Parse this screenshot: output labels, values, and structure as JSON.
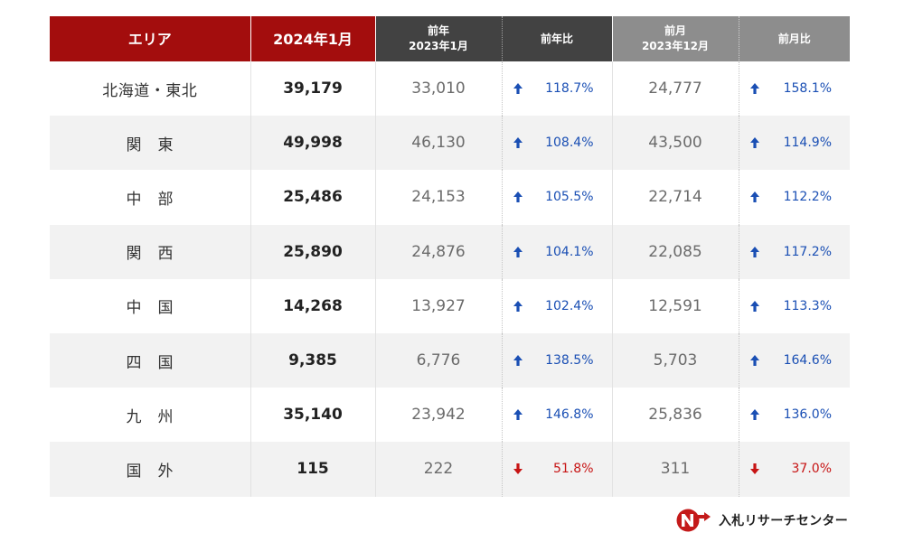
{
  "header": {
    "area": "エリア",
    "current": "2024年1月",
    "prev_year": {
      "line1": "前年",
      "line2": "2023年1月"
    },
    "yoy": "前年比",
    "prev_month": {
      "line1": "前月",
      "line2": "2023年12月"
    },
    "mom": "前月比"
  },
  "rows": [
    {
      "area": "北海道・東北",
      "current": "39,179",
      "prev_year": "33,010",
      "yoy": "118.7%",
      "yoy_dir": "up",
      "prev_month": "24,777",
      "mom": "158.1%",
      "mom_dir": "up"
    },
    {
      "area": "関　東",
      "current": "49,998",
      "prev_year": "46,130",
      "yoy": "108.4%",
      "yoy_dir": "up",
      "prev_month": "43,500",
      "mom": "114.9%",
      "mom_dir": "up"
    },
    {
      "area": "中　部",
      "current": "25,486",
      "prev_year": "24,153",
      "yoy": "105.5%",
      "yoy_dir": "up",
      "prev_month": "22,714",
      "mom": "112.2%",
      "mom_dir": "up"
    },
    {
      "area": "関　西",
      "current": "25,890",
      "prev_year": "24,876",
      "yoy": "104.1%",
      "yoy_dir": "up",
      "prev_month": "22,085",
      "mom": "117.2%",
      "mom_dir": "up"
    },
    {
      "area": "中　国",
      "current": "14,268",
      "prev_year": "13,927",
      "yoy": "102.4%",
      "yoy_dir": "up",
      "prev_month": "12,591",
      "mom": "113.3%",
      "mom_dir": "up"
    },
    {
      "area": "四　国",
      "current": "9,385",
      "prev_year": "6,776",
      "yoy": "138.5%",
      "yoy_dir": "up",
      "prev_month": "5,703",
      "mom": "164.6%",
      "mom_dir": "up"
    },
    {
      "area": "九　州",
      "current": "35,140",
      "prev_year": "23,942",
      "yoy": "146.8%",
      "yoy_dir": "up",
      "prev_month": "25,836",
      "mom": "136.0%",
      "mom_dir": "up"
    },
    {
      "area": "国　外",
      "current": "115",
      "prev_year": "222",
      "yoy": "51.8%",
      "yoy_dir": "down",
      "prev_month": "311",
      "mom": "37.0%",
      "mom_dir": "down"
    }
  ],
  "colors": {
    "current_header": "#a30d0d",
    "prev_year_header": "#424242",
    "prev_month_header": "#8d8d8d",
    "up": "#1a4fb4",
    "down": "#c71414"
  },
  "icons": {
    "up": "arrow-up-icon",
    "down": "arrow-down-icon"
  },
  "logo": {
    "text": "入札リサーチセンター"
  }
}
